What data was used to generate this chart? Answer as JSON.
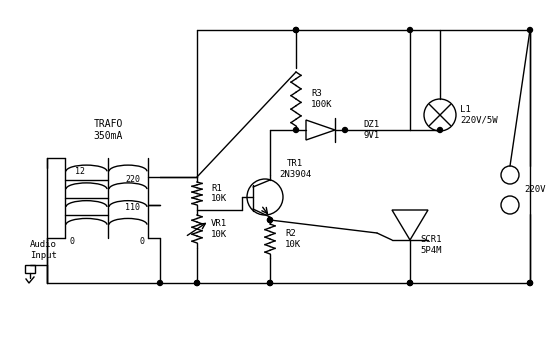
{
  "background_color": "#ffffff",
  "line_color": "#000000",
  "text_color": "#000000",
  "fig_width": 5.52,
  "fig_height": 3.38,
  "dpi": 100,
  "labels": {
    "trafo": "TRAFO\n350mA",
    "v12": "12",
    "v220": "220",
    "v110": "110",
    "v0_left": "0",
    "v0_right": "0",
    "audio_input": "Audio\nInput",
    "R1": "R1\n10K",
    "VR1": "VR1\n10K",
    "TR1": "TR1\n2N3904",
    "R2": "R2\n10K",
    "R3": "R3\n100K",
    "DZ1": "DZ1\n9V1",
    "L1": "L1\n220V/5W",
    "SCR1": "SCR1\n5P4M",
    "v220ac": "220V"
  }
}
